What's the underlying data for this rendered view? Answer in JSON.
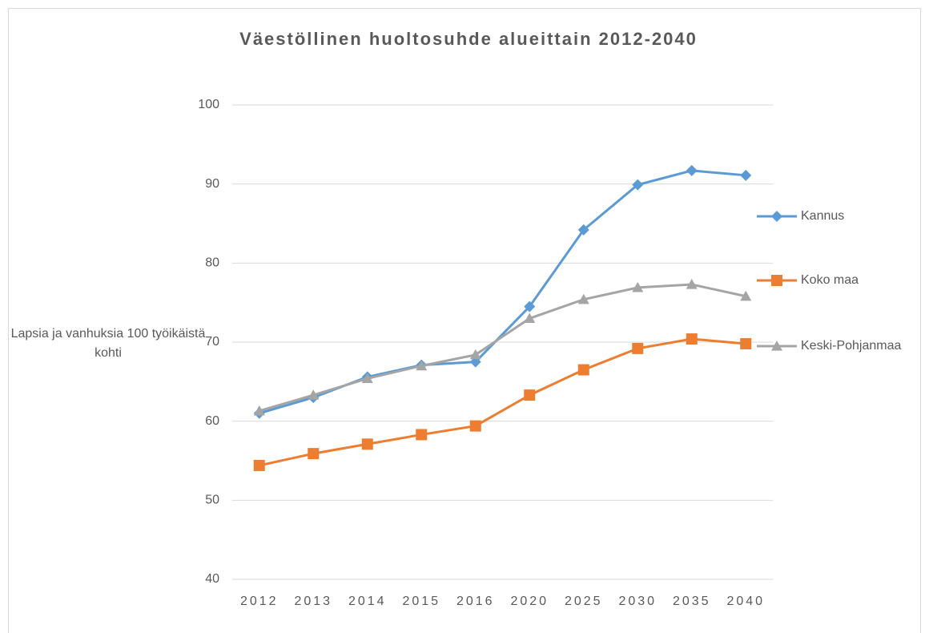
{
  "chart_data": {
    "type": "line",
    "title": "Väestöllinen huoltosuhde alueittain 2012-2040",
    "ylabel": "Lapsia ja vanhuksia 100 työikäistä kohti",
    "categories": [
      "2012",
      "2013",
      "2014",
      "2015",
      "2016",
      "2020",
      "2025",
      "2030",
      "2035",
      "2040"
    ],
    "series": [
      {
        "name": "Kannus",
        "color": "#5b9bd5",
        "marker": "diamond",
        "values": [
          61.0,
          63.0,
          65.6,
          67.1,
          67.5,
          74.5,
          84.2,
          89.9,
          91.7,
          91.1
        ]
      },
      {
        "name": "Koko maa",
        "color": "#ed7d31",
        "marker": "square",
        "values": [
          54.4,
          55.9,
          57.1,
          58.3,
          59.4,
          63.3,
          66.5,
          69.2,
          70.4,
          69.8
        ]
      },
      {
        "name": "Keski-Pohjanmaa",
        "color": "#a5a5a5",
        "marker": "triangle",
        "values": [
          61.3,
          63.3,
          65.4,
          67.0,
          68.4,
          73.0,
          75.4,
          76.9,
          77.3,
          75.8
        ]
      }
    ],
    "ylim": [
      40,
      100
    ],
    "yticks": [
      40,
      50,
      60,
      70,
      80,
      90,
      100
    ],
    "grid": true,
    "legend": "right"
  }
}
